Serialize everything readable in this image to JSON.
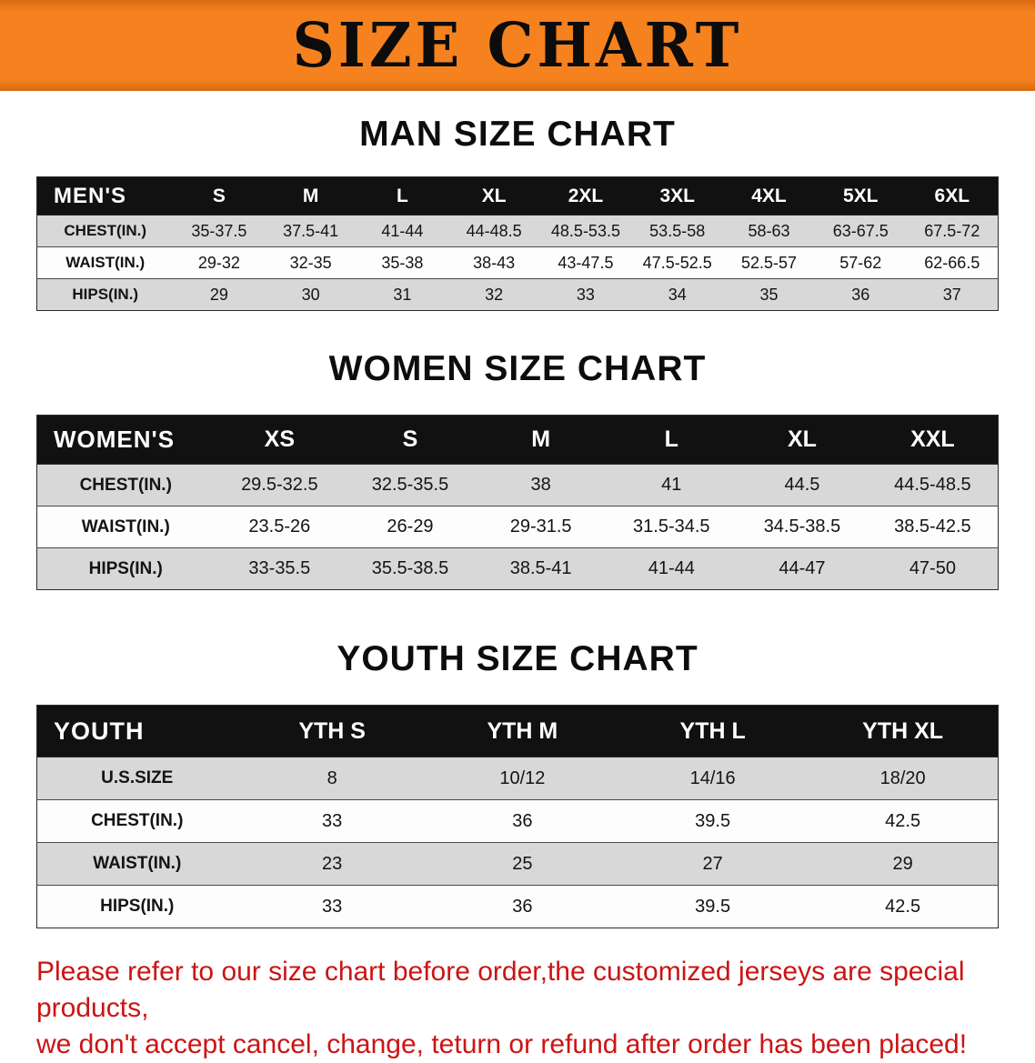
{
  "colors": {
    "banner_orange": "#f5821f",
    "banner_orange_dark": "#d96a10",
    "header_black": "#111111",
    "row_gray": "#d8d8d8",
    "row_white": "#fdfdfd",
    "disclaimer_red": "#cc1414"
  },
  "banner": {
    "title": "SIZE CHART"
  },
  "sections": [
    {
      "id": "men",
      "heading": "MAN SIZE CHART",
      "table": {
        "header": [
          "MEN'S",
          "S",
          "M",
          "L",
          "XL",
          "2XL",
          "3XL",
          "4XL",
          "5XL",
          "6XL"
        ],
        "rows": [
          [
            "CHEST(IN.)",
            "35-37.5",
            "37.5-41",
            "41-44",
            "44-48.5",
            "48.5-53.5",
            "53.5-58",
            "58-63",
            "63-67.5",
            "67.5-72"
          ],
          [
            "WAIST(IN.)",
            "29-32",
            "32-35",
            "35-38",
            "38-43",
            "43-47.5",
            "47.5-52.5",
            "52.5-57",
            "57-62",
            "62-66.5"
          ],
          [
            "HIPS(IN.)",
            "29",
            "30",
            "31",
            "32",
            "33",
            "34",
            "35",
            "36",
            "37"
          ]
        ]
      }
    },
    {
      "id": "women",
      "heading": "WOMEN SIZE CHART",
      "table": {
        "header": [
          "WOMEN'S",
          "XS",
          "S",
          "M",
          "L",
          "XL",
          "XXL"
        ],
        "rows": [
          [
            "CHEST(IN.)",
            "29.5-32.5",
            "32.5-35.5",
            "38",
            "41",
            "44.5",
            "44.5-48.5"
          ],
          [
            "WAIST(IN.)",
            "23.5-26",
            "26-29",
            "29-31.5",
            "31.5-34.5",
            "34.5-38.5",
            "38.5-42.5"
          ],
          [
            "HIPS(IN.)",
            "33-35.5",
            "35.5-38.5",
            "38.5-41",
            "41-44",
            "44-47",
            "47-50"
          ]
        ]
      }
    },
    {
      "id": "youth",
      "heading": "YOUTH SIZE CHART",
      "table": {
        "header": [
          "YOUTH",
          "YTH S",
          "YTH M",
          "YTH L",
          "YTH XL"
        ],
        "rows": [
          [
            "U.S.SIZE",
            "8",
            "10/12",
            "14/16",
            "18/20"
          ],
          [
            "CHEST(IN.)",
            "33",
            "36",
            "39.5",
            "42.5"
          ],
          [
            "WAIST(IN.)",
            "23",
            "25",
            "27",
            "29"
          ],
          [
            "HIPS(IN.)",
            "33",
            "36",
            "39.5",
            "42.5"
          ]
        ]
      }
    }
  ],
  "disclaimer": {
    "line1": "Please refer to our size chart before order,the customized jerseys are special products,",
    "line2": "we don't accept cancel, change, teturn or refund after order has been placed!"
  }
}
